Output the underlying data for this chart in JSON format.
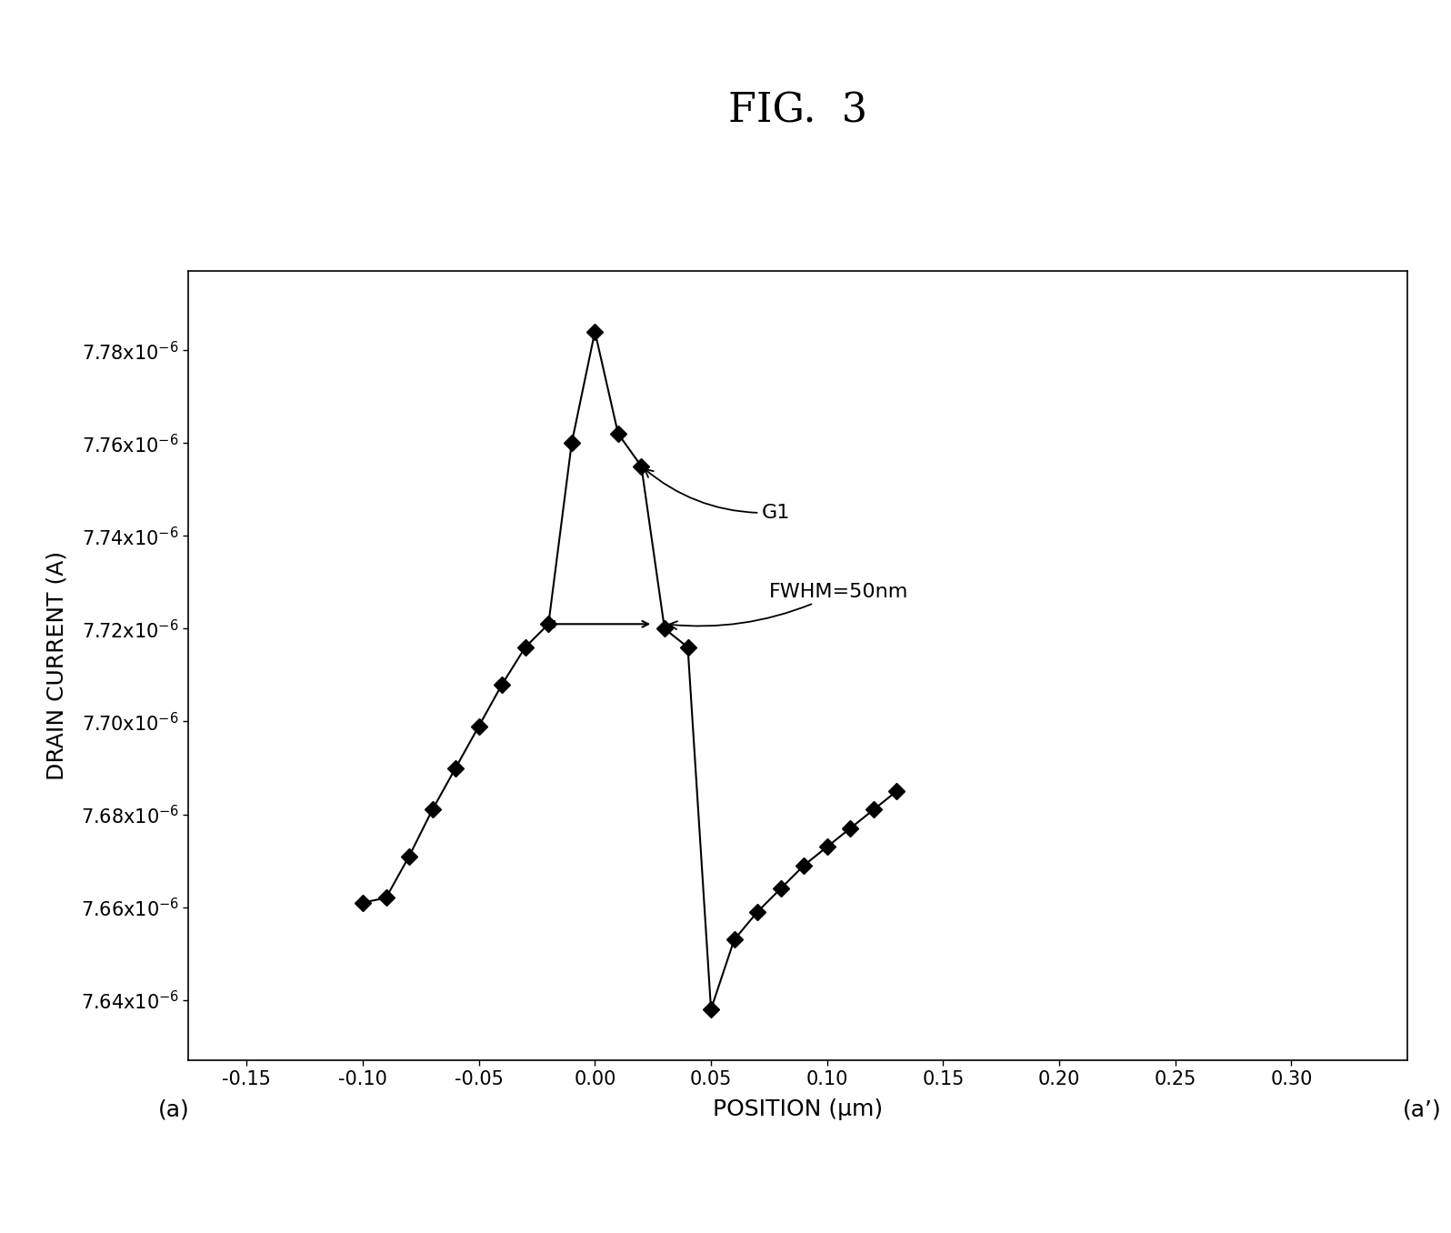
{
  "title": "FIG.  3",
  "xlabel": "POSITION (μm)",
  "ylabel": "DRAIN CURRENT (A)",
  "label_a": "(a)",
  "label_a_prime": "(a’)",
  "xlim": [
    -0.175,
    0.35
  ],
  "ylim": [
    7.627e-06,
    7.797e-06
  ],
  "xticks": [
    -0.15,
    -0.1,
    -0.05,
    0.0,
    0.05,
    0.1,
    0.15,
    0.2,
    0.25,
    0.3
  ],
  "xtick_labels": [
    "-0.15",
    "-0.10",
    "-0.05",
    "0.00",
    "0.05",
    "0.10",
    "0.15",
    "0.20",
    "0.25",
    "0.30"
  ],
  "yticks": [
    7.64e-06,
    7.66e-06,
    7.68e-06,
    7.7e-06,
    7.72e-06,
    7.74e-06,
    7.76e-06,
    7.78e-06
  ],
  "ytick_labels": [
    "7.64x10⁻⁶",
    "7.66x10⁻⁶",
    "7.68x10⁻⁶",
    "7.70x10⁻⁶",
    "7.72x10⁻⁶",
    "7.74x10⁻⁶",
    "7.76x10⁻⁶",
    "7.78x10⁻⁶"
  ],
  "x_data": [
    -0.1,
    -0.09,
    -0.08,
    -0.07,
    -0.06,
    -0.05,
    -0.04,
    -0.03,
    -0.02,
    -0.01,
    0.0,
    0.01,
    0.02,
    0.03,
    0.04,
    0.05,
    0.06,
    0.07,
    0.08,
    0.09,
    0.1,
    0.11,
    0.12,
    0.13
  ],
  "y_data": [
    7.661e-06,
    7.662e-06,
    7.671e-06,
    7.681e-06,
    7.69e-06,
    7.699e-06,
    7.708e-06,
    7.716e-06,
    7.721e-06,
    7.76e-06,
    7.784e-06,
    7.762e-06,
    7.755e-06,
    7.72e-06,
    7.716e-06,
    7.638e-06,
    7.653e-06,
    7.659e-06,
    7.664e-06,
    7.669e-06,
    7.673e-06,
    7.677e-06,
    7.681e-06,
    7.685e-06
  ],
  "background_color": "#ffffff",
  "line_color": "#000000",
  "marker_color": "#000000",
  "title_fontsize": 32,
  "label_fontsize": 18,
  "tick_fontsize": 15,
  "annot_fontsize": 16
}
